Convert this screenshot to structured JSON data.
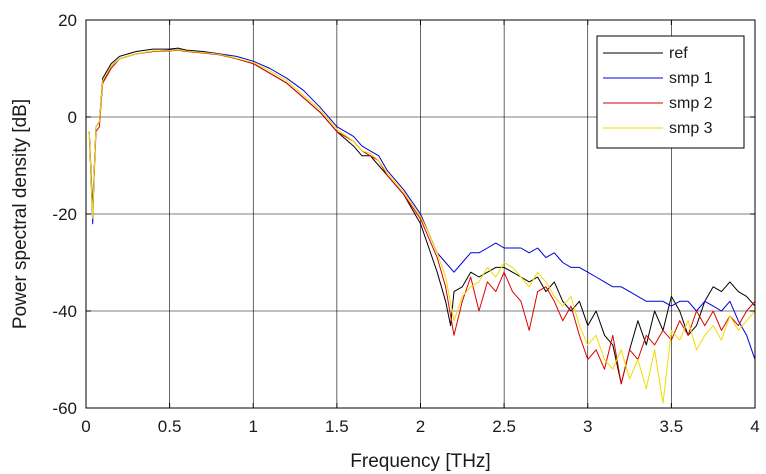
{
  "chart_data": {
    "type": "line",
    "title": "",
    "xlabel": "Frequency [THz]",
    "ylabel": "Power spectral density [dB]",
    "xlim": [
      0,
      4
    ],
    "ylim": [
      -60,
      20
    ],
    "xticks": [
      0,
      0.5,
      1,
      1.5,
      2,
      2.5,
      3,
      3.5,
      4
    ],
    "xtick_labels": [
      "0",
      "0.5",
      "1",
      "1.5",
      "2",
      "2.5",
      "3",
      "3.5",
      "4"
    ],
    "yticks": [
      -60,
      -40,
      -20,
      0,
      20
    ],
    "ytick_labels": [
      "-60",
      "-40",
      "-20",
      "0",
      "20"
    ],
    "grid": true,
    "legend_position": "top-right",
    "series": [
      {
        "name": "ref",
        "color": "#000000",
        "x": [
          0.02,
          0.04,
          0.05,
          0.06,
          0.08,
          0.1,
          0.15,
          0.2,
          0.3,
          0.4,
          0.5,
          0.55,
          0.6,
          0.7,
          0.8,
          0.9,
          1.0,
          1.1,
          1.2,
          1.3,
          1.4,
          1.5,
          1.6,
          1.65,
          1.7,
          1.75,
          1.8,
          1.9,
          2.0,
          2.05,
          2.1,
          2.15,
          2.18,
          2.2,
          2.25,
          2.3,
          2.35,
          2.4,
          2.45,
          2.5,
          2.55,
          2.6,
          2.65,
          2.7,
          2.75,
          2.8,
          2.85,
          2.9,
          2.95,
          3.0,
          3.05,
          3.1,
          3.15,
          3.2,
          3.25,
          3.3,
          3.35,
          3.4,
          3.45,
          3.5,
          3.55,
          3.6,
          3.65,
          3.7,
          3.75,
          3.8,
          3.85,
          3.9,
          3.95,
          4.0
        ],
        "y": [
          -3,
          -19,
          -10,
          -2,
          -1,
          8,
          11,
          12.5,
          13.5,
          14,
          14,
          14.2,
          13.8,
          13.5,
          13,
          12,
          11,
          9,
          7,
          4,
          1,
          -3,
          -6,
          -8,
          -8,
          -10,
          -12,
          -16,
          -22,
          -27,
          -32,
          -38,
          -43,
          -36,
          -35,
          -32,
          -33,
          -32,
          -31,
          -31,
          -32,
          -33,
          -34,
          -33,
          -36,
          -34,
          -38,
          -40,
          -38,
          -43,
          -40,
          -45,
          -47,
          -55,
          -48,
          -42,
          -47,
          -40,
          -44,
          -37,
          -40,
          -45,
          -43,
          -38,
          -35,
          -36,
          -34,
          -36,
          -37,
          -39
        ]
      },
      {
        "name": "smp 1",
        "color": "#0000dd",
        "x": [
          0.02,
          0.04,
          0.05,
          0.06,
          0.08,
          0.1,
          0.15,
          0.2,
          0.3,
          0.4,
          0.5,
          0.55,
          0.6,
          0.7,
          0.8,
          0.9,
          1.0,
          1.1,
          1.2,
          1.3,
          1.4,
          1.5,
          1.6,
          1.65,
          1.7,
          1.75,
          1.8,
          1.9,
          2.0,
          2.05,
          2.1,
          2.15,
          2.2,
          2.25,
          2.3,
          2.35,
          2.4,
          2.45,
          2.5,
          2.55,
          2.6,
          2.65,
          2.7,
          2.75,
          2.8,
          2.85,
          2.9,
          2.95,
          3.0,
          3.05,
          3.1,
          3.15,
          3.2,
          3.25,
          3.3,
          3.35,
          3.4,
          3.45,
          3.5,
          3.55,
          3.6,
          3.65,
          3.7,
          3.75,
          3.8,
          3.85,
          3.9,
          3.95,
          4.0
        ],
        "y": [
          -3,
          -22,
          -10,
          -2,
          -1,
          7,
          10.5,
          12,
          13,
          13.5,
          13.8,
          13.9,
          13.6,
          13.4,
          13,
          12.5,
          11.5,
          10,
          8,
          5.5,
          2,
          -2,
          -4,
          -6,
          -7,
          -8,
          -11,
          -15,
          -20,
          -24,
          -28,
          -30,
          -32,
          -30,
          -28,
          -28,
          -27,
          -26,
          -27,
          -27,
          -27,
          -28,
          -27,
          -29,
          -28,
          -30,
          -31,
          -31,
          -32,
          -33,
          -34,
          -35,
          -35,
          -36,
          -37,
          -38,
          -38,
          -38,
          -39,
          -38,
          -38,
          -40,
          -38,
          -39,
          -40,
          -38,
          -42,
          -45,
          -50
        ]
      },
      {
        "name": "smp 2",
        "color": "#dd0000",
        "x": [
          0.02,
          0.04,
          0.05,
          0.06,
          0.08,
          0.1,
          0.15,
          0.2,
          0.3,
          0.4,
          0.5,
          0.55,
          0.6,
          0.7,
          0.8,
          0.9,
          1.0,
          1.1,
          1.2,
          1.3,
          1.4,
          1.5,
          1.6,
          1.65,
          1.7,
          1.75,
          1.8,
          1.9,
          2.0,
          2.05,
          2.1,
          2.15,
          2.2,
          2.25,
          2.3,
          2.35,
          2.4,
          2.45,
          2.5,
          2.55,
          2.6,
          2.65,
          2.7,
          2.75,
          2.8,
          2.85,
          2.9,
          2.95,
          3.0,
          3.05,
          3.1,
          3.15,
          3.2,
          3.25,
          3.3,
          3.35,
          3.4,
          3.45,
          3.5,
          3.55,
          3.6,
          3.65,
          3.7,
          3.75,
          3.8,
          3.85,
          3.9,
          3.95,
          4.0
        ],
        "y": [
          -4,
          -20,
          -11,
          -3,
          -2,
          7,
          10,
          12,
          13,
          13.5,
          13.6,
          13.8,
          13.5,
          13.2,
          12.8,
          12,
          11,
          9,
          7,
          4,
          1,
          -3,
          -5,
          -7,
          -8,
          -9,
          -12,
          -16,
          -21,
          -25,
          -29,
          -35,
          -45,
          -38,
          -33,
          -40,
          -34,
          -36,
          -32,
          -36,
          -38,
          -44,
          -36,
          -35,
          -38,
          -42,
          -39,
          -45,
          -50,
          -48,
          -52,
          -45,
          -55,
          -48,
          -50,
          -45,
          -47,
          -44,
          -46,
          -42,
          -45,
          -40,
          -43,
          -40,
          -44,
          -41,
          -43,
          -40,
          -38
        ]
      },
      {
        "name": "smp 3",
        "color": "#eedd00",
        "x": [
          0.02,
          0.04,
          0.05,
          0.06,
          0.08,
          0.1,
          0.15,
          0.2,
          0.3,
          0.4,
          0.5,
          0.55,
          0.6,
          0.7,
          0.8,
          0.9,
          1.0,
          1.1,
          1.2,
          1.3,
          1.4,
          1.5,
          1.6,
          1.65,
          1.7,
          1.75,
          1.8,
          1.9,
          2.0,
          2.05,
          2.1,
          2.15,
          2.2,
          2.25,
          2.3,
          2.35,
          2.4,
          2.45,
          2.5,
          2.55,
          2.6,
          2.65,
          2.7,
          2.75,
          2.8,
          2.85,
          2.9,
          2.95,
          3.0,
          3.05,
          3.1,
          3.15,
          3.2,
          3.25,
          3.3,
          3.35,
          3.4,
          3.45,
          3.5,
          3.55,
          3.6,
          3.65,
          3.7,
          3.75,
          3.8,
          3.85,
          3.9,
          3.95,
          4.0
        ],
        "y": [
          -3,
          -21,
          -10,
          -2,
          -1,
          7.5,
          10.5,
          12,
          13,
          13.6,
          13.7,
          13.9,
          13.6,
          13.3,
          12.9,
          12.1,
          11.2,
          9.5,
          7.5,
          4.5,
          1.5,
          -2.5,
          -5,
          -7,
          -7.5,
          -9,
          -11.5,
          -15.5,
          -20.5,
          -24,
          -28,
          -33,
          -42,
          -37,
          -35,
          -34,
          -31,
          -33,
          -30,
          -31,
          -33,
          -35,
          -32,
          -34,
          -37,
          -39,
          -37,
          -43,
          -47,
          -45,
          -50,
          -52,
          -48,
          -54,
          -50,
          -56,
          -48,
          -59,
          -44,
          -46,
          -42,
          -48,
          -45,
          -43,
          -46,
          -41,
          -44,
          -42,
          -40
        ]
      }
    ]
  }
}
